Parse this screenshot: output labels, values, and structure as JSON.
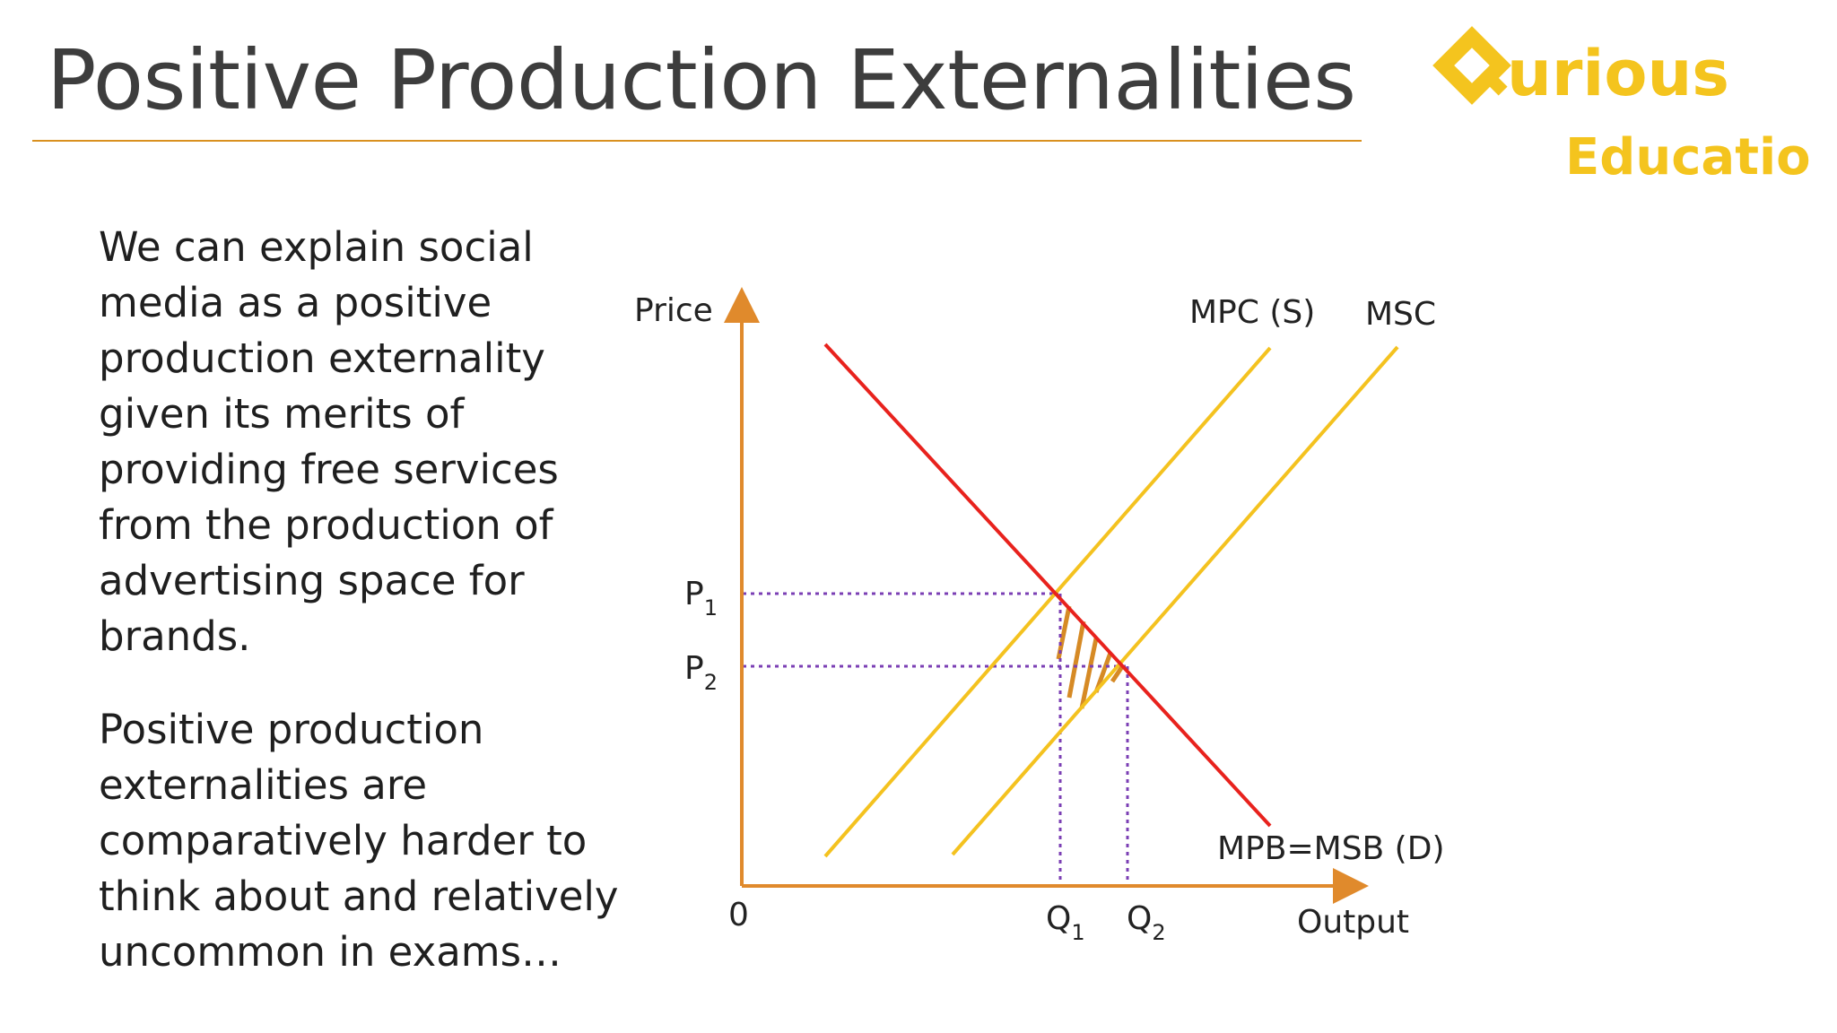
{
  "slide": {
    "title": "Positive Production Externalities"
  },
  "logo": {
    "word1_rest": "urious",
    "word2": "Education",
    "brand_color": "#f4c41e"
  },
  "body": {
    "paragraph1": "We can explain social media as a positive production externality given its merits of providing free services from the production of advertising space for brands.",
    "paragraph2": "Positive production externalities are comparatively harder to think about and relatively uncommon in exams…"
  },
  "diagram": {
    "y_axis_label": "Price",
    "x_axis_label": "Output",
    "origin_label": "0",
    "p1": {
      "main": "P",
      "sub": "1"
    },
    "p2": {
      "main": "P",
      "sub": "2"
    },
    "q1": {
      "main": "Q",
      "sub": "1"
    },
    "q2": {
      "main": "Q",
      "sub": "2"
    },
    "mpc_label": "MPC (S)",
    "msc_label": "MSC",
    "demand_label": "MPB=MSB (D)",
    "colors": {
      "axis": "#e08a2c",
      "demand": "#e8221d",
      "supply": "#f4c21f",
      "guides": "#7b3fb4",
      "hatch": "#d68a25"
    }
  }
}
